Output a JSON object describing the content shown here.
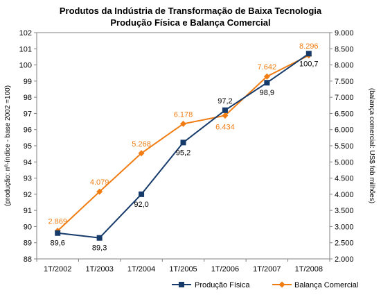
{
  "chart_data": {
    "type": "line",
    "title": "Produtos da Indústria de Transformação de Baixa Tecnologia",
    "subtitle": "Produção Física e Balança Comercial",
    "categories": [
      "1T/2002",
      "1T/2003",
      "1T/2004",
      "1T/2005",
      "1T/2006",
      "1T/2007",
      "1T/2008"
    ],
    "ylabel_left": "(produção: nº-índice - base 2002 =100)",
    "ylabel_right": "(balança comercial: US$ fob milhões)",
    "ylim_left": [
      88,
      102
    ],
    "ylim_right": [
      2000,
      9000
    ],
    "yticks_left": [
      "88",
      "89",
      "90",
      "91",
      "92",
      "93",
      "94",
      "95",
      "96",
      "97",
      "98",
      "99",
      "100",
      "101",
      "102"
    ],
    "yticks_right": [
      "2.000",
      "2.500",
      "3.000",
      "3.500",
      "4.000",
      "4.500",
      "5.000",
      "5.500",
      "6.000",
      "6.500",
      "7.000",
      "7.500",
      "8.000",
      "8.500",
      "9.000"
    ],
    "grid": false,
    "legend_position": "bottom-right",
    "series": [
      {
        "name": "Produção Física",
        "axis": "left",
        "color": "#163b6b",
        "marker": "square",
        "values": [
          89.6,
          89.3,
          92.0,
          95.2,
          97.2,
          98.9,
          100.7
        ],
        "labels": [
          "89,6",
          "89,3",
          "92,0",
          "95,2",
          "97,2",
          "98,9",
          "100,7"
        ]
      },
      {
        "name": "Balança Comercial",
        "axis": "right",
        "color": "#f07c12",
        "marker": "diamond",
        "values": [
          2869,
          4079,
          5268,
          6178,
          6434,
          7642,
          8296
        ],
        "labels": [
          "2.869",
          "4.079",
          "5.268",
          "6.178",
          "6.434",
          "7.642",
          "8.296"
        ]
      }
    ]
  }
}
